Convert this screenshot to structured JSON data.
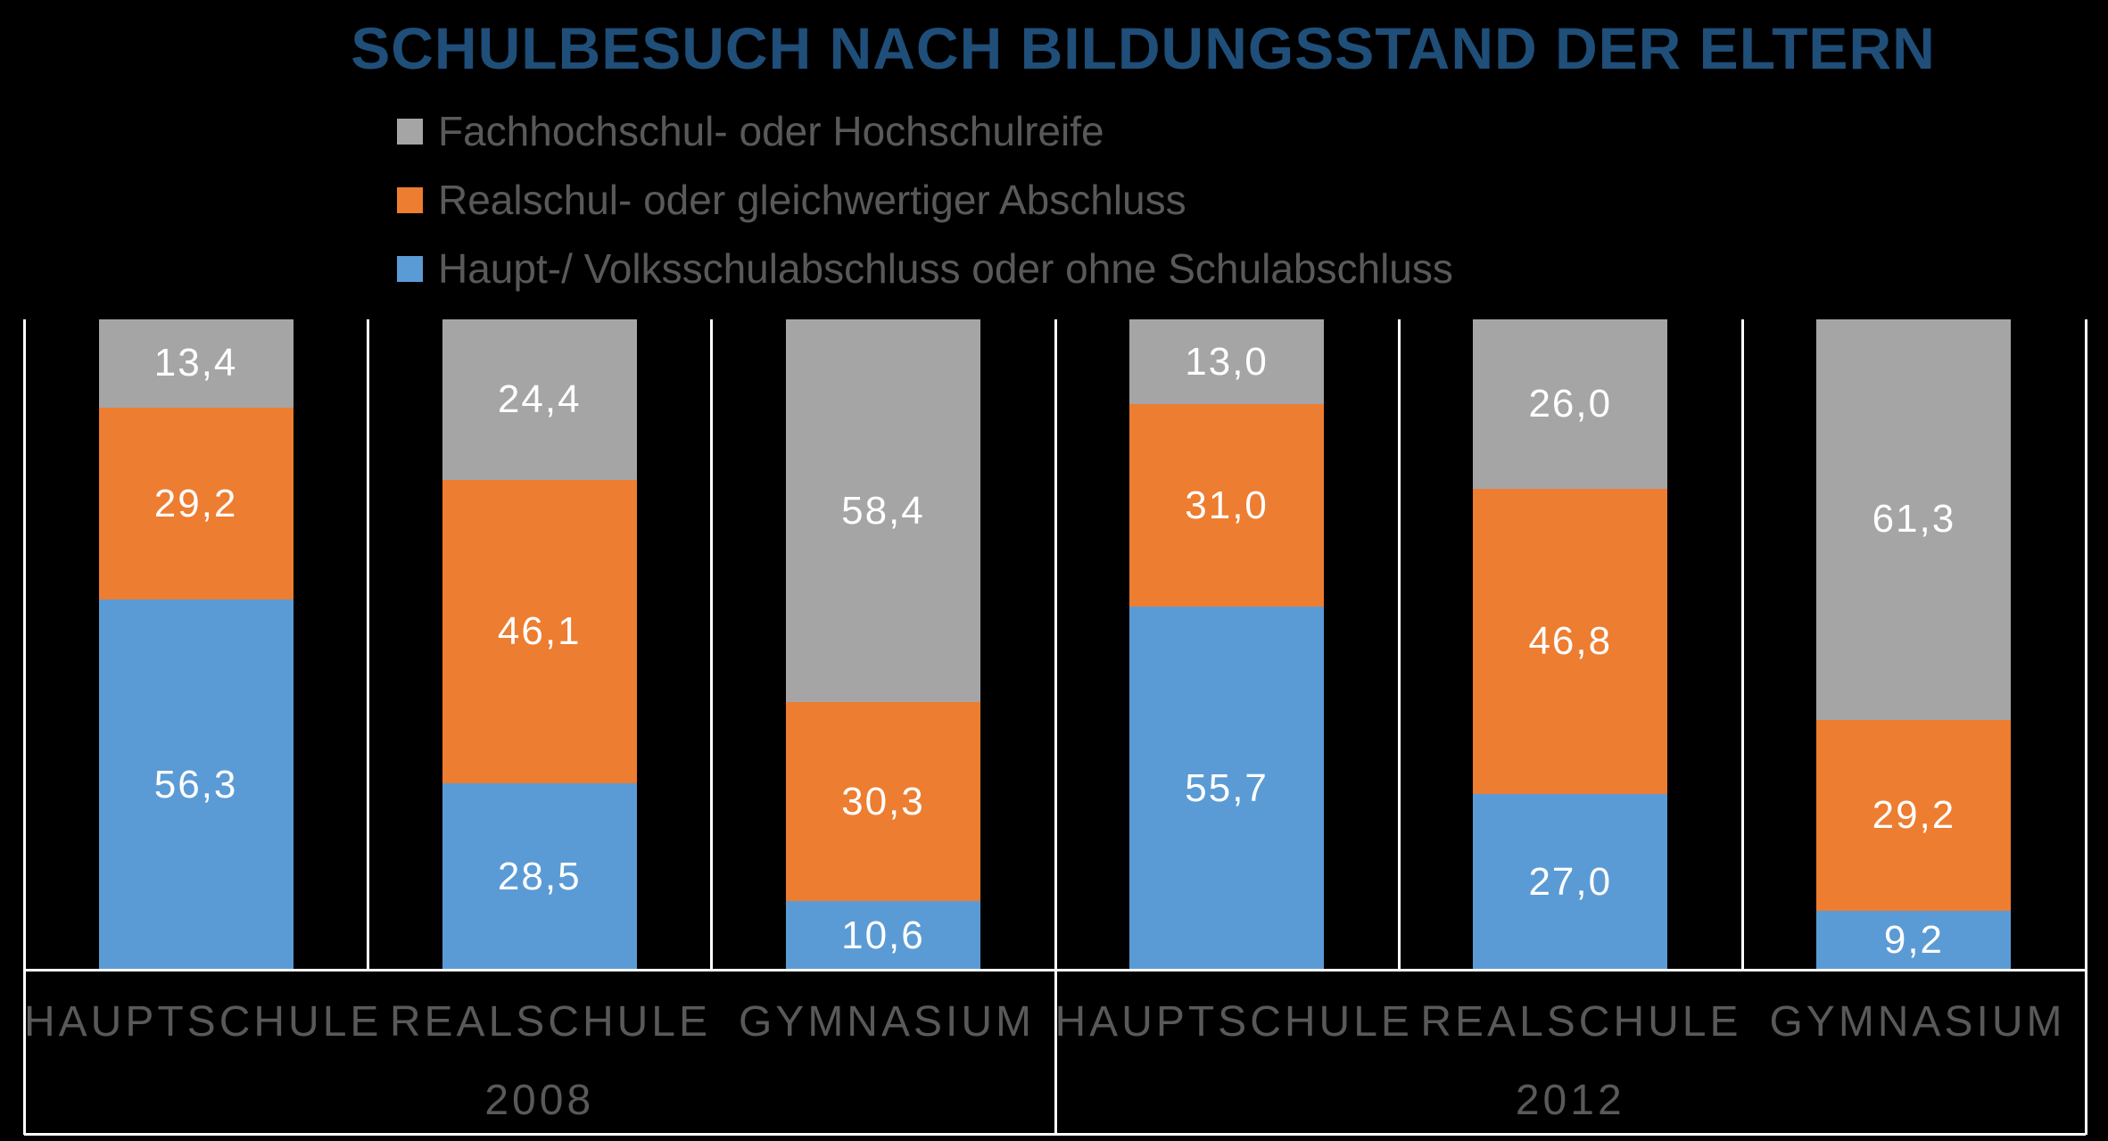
{
  "title": "SCHULBESUCH NACH BILDUNGSSTAND DER ELTERN",
  "colors": {
    "background": "#000000",
    "title_text": "#1F4E79",
    "axis_text": "#595959",
    "legend_text": "#595959",
    "grid_lines": "#FFFFFF",
    "data_label_text": "#FFFFFF",
    "series_blue": "#5B9BD5",
    "series_orange": "#ED7D31",
    "series_gray": "#A5A5A5"
  },
  "chart_data": {
    "type": "bar",
    "subtype": "stacked-100-column",
    "title": "SCHULBESUCH NACH BILDUNGSSTAND DER ELTERN",
    "legend_position": "top-left",
    "grid": "category-separators-white",
    "value_format": "decimal-comma-1-place",
    "ylim": [
      0,
      100
    ],
    "y_axis_hidden": true,
    "groups": [
      {
        "label": "2008",
        "categories": [
          "HAUPTSCHULE",
          "REALSCHULE",
          "GYMNASIUM"
        ]
      },
      {
        "label": "2012",
        "categories": [
          "HAUPTSCHULE",
          "REALSCHULE",
          "GYMNASIUM"
        ]
      }
    ],
    "categories_flat": [
      "HAUPTSCHULE 2008",
      "REALSCHULE 2008",
      "GYMNASIUM 2008",
      "HAUPTSCHULE 2012",
      "REALSCHULE 2012",
      "GYMNASIUM 2012"
    ],
    "series": [
      {
        "name": "Haupt-/ Volksschulabschluss oder ohne Schulabschluss",
        "color": "#5B9BD5",
        "values": [
          56.3,
          28.5,
          10.6,
          55.7,
          27.0,
          9.2
        ],
        "labels": [
          "56,3",
          "28,5",
          "10,6",
          "55,7",
          "27,0",
          "9,2"
        ]
      },
      {
        "name": "Realschul- oder gleichwertiger Abschluss",
        "color": "#ED7D31",
        "values": [
          29.2,
          46.1,
          30.3,
          31.0,
          46.8,
          29.2
        ],
        "labels": [
          "29,2",
          "46,1",
          "30,3",
          "31,0",
          "46,8",
          "29,2"
        ]
      },
      {
        "name": "Fachhochschul- oder Hochschulreife",
        "color": "#A5A5A5",
        "values": [
          13.4,
          24.4,
          58.4,
          13.0,
          26.0,
          61.3
        ],
        "labels": [
          "13,4",
          "24,4",
          "58,4",
          "13,0",
          "26,0",
          "61,3"
        ]
      }
    ],
    "legend_order_top_to_bottom": [
      2,
      1,
      0
    ]
  }
}
